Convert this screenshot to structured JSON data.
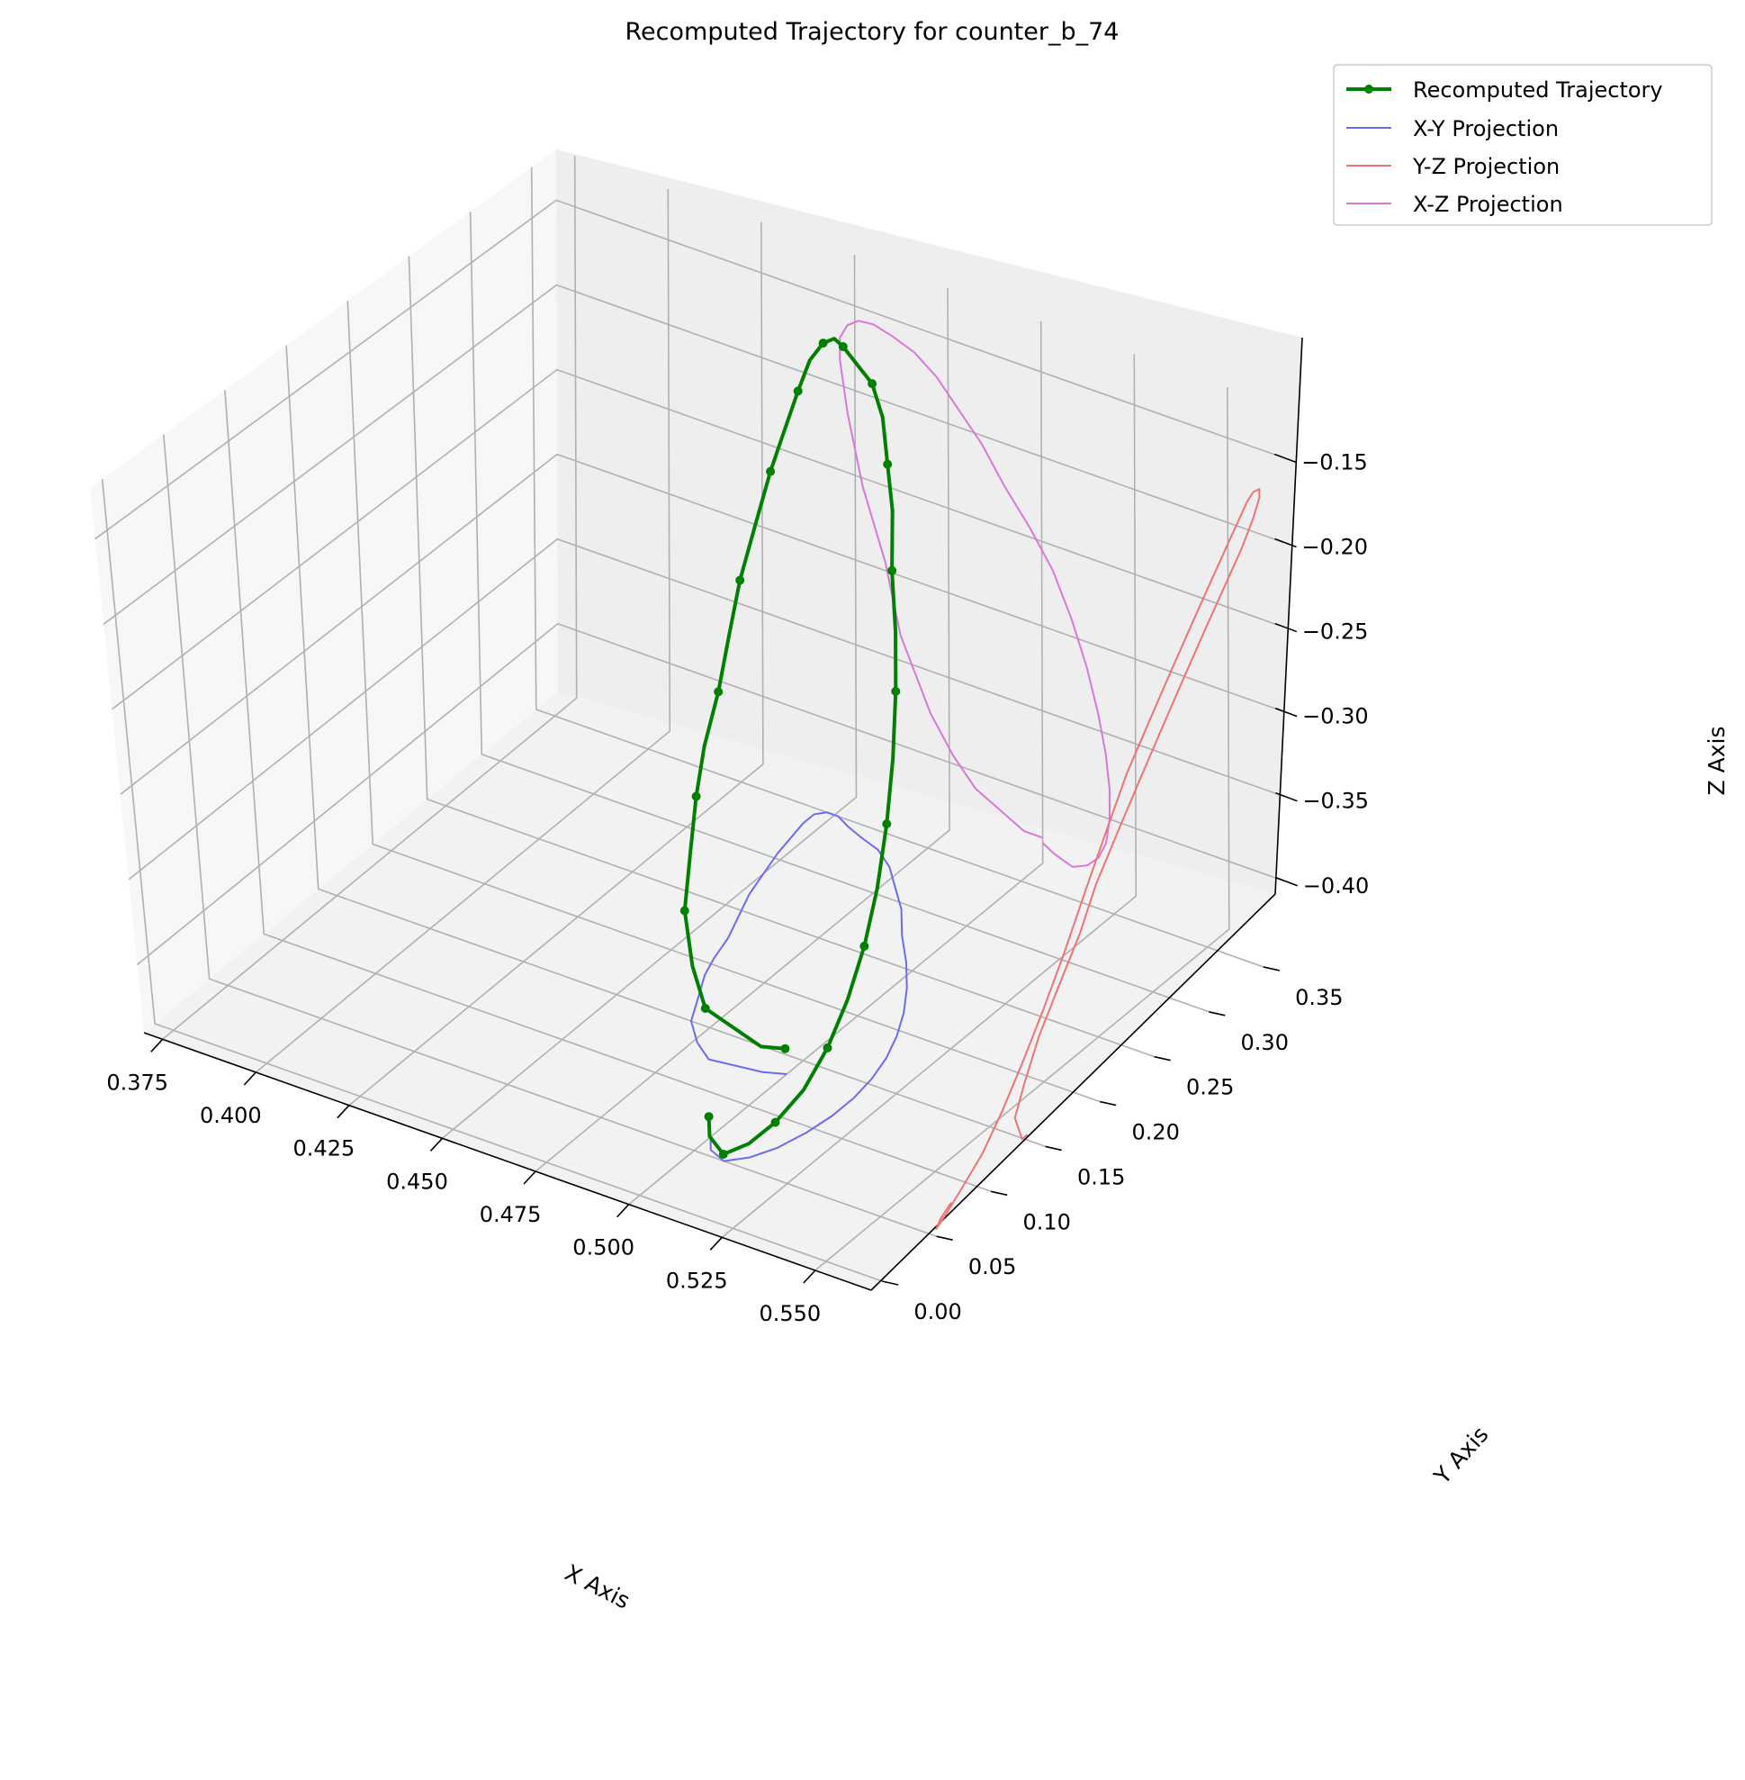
{
  "chart_data": {
    "type": "line",
    "projection": "3d",
    "title": "Recomputed Trajectory for counter_b_74",
    "xlabel": "X Axis",
    "ylabel": "Y Axis",
    "zlabel": "Z Axis",
    "grid": true,
    "legend_position": "top-right",
    "xlim": [
      0.37,
      0.565
    ],
    "ylim": [
      -0.01,
      0.37
    ],
    "zlim": [
      -0.44,
      -0.12
    ],
    "x_ticks": [
      "0.375",
      "0.400",
      "0.425",
      "0.450",
      "0.475",
      "0.500",
      "0.525",
      "0.550"
    ],
    "y_ticks": [
      "0.00",
      "0.05",
      "0.10",
      "0.15",
      "0.20",
      "0.25",
      "0.30",
      "0.35"
    ],
    "z_ticks": [
      "−0.15",
      "−0.20",
      "−0.25",
      "−0.30",
      "−0.35",
      "−0.40"
    ],
    "series": [
      {
        "name": "Recomputed Trajectory",
        "color": "#008000",
        "marker": "circle"
      },
      {
        "name": "X-Y Projection",
        "color": "#6b6bef"
      },
      {
        "name": "Y-Z Projection",
        "color": "#ef7373"
      },
      {
        "name": "X-Z Projection",
        "color": "#d977d9"
      }
    ],
    "trajectory": {
      "x": [
        0.5,
        0.495,
        0.482,
        0.476,
        0.47,
        0.466,
        0.462,
        0.46,
        0.458,
        0.455,
        0.452,
        0.45,
        0.448,
        0.447,
        0.446,
        0.446,
        0.448,
        0.451,
        0.455,
        0.46,
        0.466,
        0.472,
        0.478,
        0.484,
        0.49,
        0.497,
        0.503,
        0.508,
        0.512,
        0.515,
        0.517,
        0.518,
        0.518,
        0.517,
        0.515,
        0.512,
        0.508,
        0.503,
        0.5
      ],
      "y": [
        0.135,
        0.13,
        0.125,
        0.135,
        0.15,
        0.17,
        0.19,
        0.205,
        0.225,
        0.245,
        0.265,
        0.285,
        0.305,
        0.32,
        0.335,
        0.345,
        0.35,
        0.35,
        0.345,
        0.34,
        0.335,
        0.325,
        0.31,
        0.295,
        0.275,
        0.255,
        0.235,
        0.215,
        0.195,
        0.175,
        0.155,
        0.135,
        0.115,
        0.095,
        0.075,
        0.06,
        0.05,
        0.055,
        0.065
      ],
      "z": [
        -0.425,
        -0.425,
        -0.41,
        -0.395,
        -0.375,
        -0.355,
        -0.335,
        -0.315,
        -0.295,
        -0.275,
        -0.255,
        -0.235,
        -0.215,
        -0.2,
        -0.185,
        -0.172,
        -0.163,
        -0.158,
        -0.157,
        -0.16,
        -0.165,
        -0.175,
        -0.19,
        -0.205,
        -0.225,
        -0.245,
        -0.265,
        -0.29,
        -0.315,
        -0.34,
        -0.362,
        -0.382,
        -0.4,
        -0.415,
        -0.425,
        -0.432,
        -0.436,
        -0.432,
        -0.428
      ]
    }
  }
}
